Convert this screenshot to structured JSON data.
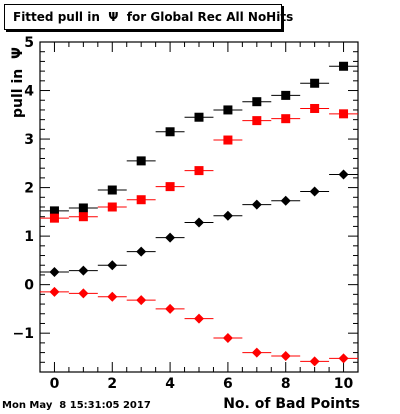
{
  "title": "Fitted pull in  Ψ  for Global Rec All NoHits",
  "timestamp": "Mon May  8 15:31:05 2017",
  "chart_data": {
    "type": "scatter",
    "xlabel": "No. of Bad Points",
    "ylabel": "pull in  Ψ",
    "xlim": [
      -0.5,
      10.5
    ],
    "ylim": [
      -1.8,
      5.0
    ],
    "x_ticks": [
      0,
      2,
      4,
      6,
      8,
      10
    ],
    "y_ticks": [
      -1,
      0,
      1,
      2,
      3,
      4,
      5
    ],
    "x_tick_labels": [
      "0",
      "2",
      "4",
      "6",
      "8",
      "10"
    ],
    "y_tick_labels": [
      "−1",
      "0",
      "1",
      "2",
      "3",
      "4",
      "5"
    ],
    "x": [
      0,
      1,
      2,
      3,
      4,
      5,
      6,
      7,
      8,
      9,
      10
    ],
    "x_error": 0.5,
    "series": [
      {
        "marker": "square",
        "color": "#000000",
        "values": [
          1.52,
          1.58,
          1.95,
          2.55,
          3.15,
          3.45,
          3.6,
          3.77,
          3.9,
          4.15,
          4.5
        ]
      },
      {
        "marker": "square",
        "color": "#ff0000",
        "values": [
          1.37,
          1.4,
          1.6,
          1.75,
          2.02,
          2.35,
          2.98,
          3.38,
          3.42,
          3.63,
          3.52
        ]
      },
      {
        "marker": "diamond",
        "color": "#000000",
        "values": [
          0.26,
          0.29,
          0.4,
          0.68,
          0.97,
          1.28,
          1.42,
          1.65,
          1.73,
          1.92,
          2.27
        ]
      },
      {
        "marker": "diamond",
        "color": "#ff0000",
        "values": [
          -0.15,
          -0.18,
          -0.25,
          -0.32,
          -0.5,
          -0.7,
          -1.1,
          -1.4,
          -1.47,
          -1.58,
          -1.52
        ]
      }
    ]
  }
}
